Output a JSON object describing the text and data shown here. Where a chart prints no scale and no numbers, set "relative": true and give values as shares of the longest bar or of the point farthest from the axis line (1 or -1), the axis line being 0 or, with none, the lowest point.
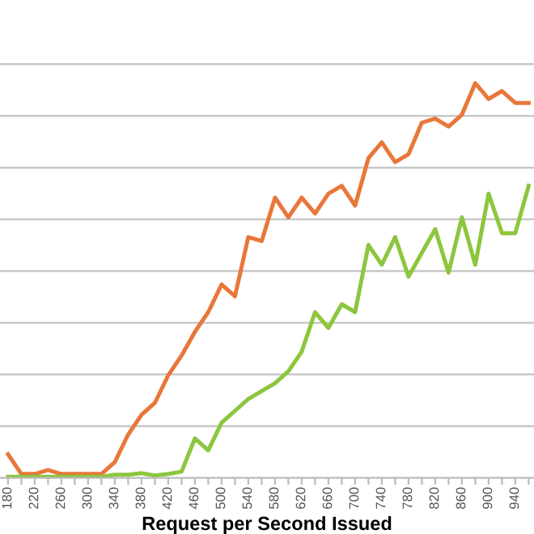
{
  "chart_data": {
    "type": "line",
    "relative": true,
    "xlabel": "Request per Second Issued",
    "categories": [
      "180",
      null,
      "220",
      null,
      "260",
      null,
      "300",
      null,
      "340",
      null,
      "380",
      null,
      "420",
      null,
      "460",
      null,
      "500",
      null,
      "540",
      null,
      "580",
      null,
      "620",
      null,
      "660",
      null,
      "700",
      null,
      "740",
      null,
      "780",
      null,
      "820",
      null,
      "860",
      null,
      "900",
      null,
      "940",
      null
    ],
    "series": [
      {
        "color": "#e8773a",
        "values": [
          0.06,
          0.01,
          0.01,
          0.02,
          0.01,
          0.01,
          0.01,
          0.01,
          0.04,
          0.11,
          0.16,
          0.19,
          0.26,
          0.31,
          0.37,
          0.42,
          0.49,
          0.46,
          0.61,
          0.6,
          0.71,
          0.66,
          0.71,
          0.67,
          0.72,
          0.74,
          0.69,
          0.81,
          0.85,
          0.8,
          0.82,
          0.9,
          0.91,
          0.89,
          0.92,
          1,
          0.96,
          0.98,
          0.95,
          0.95
        ]
      },
      {
        "color": "#8cc63e",
        "values": [
          0.003,
          0.003,
          0.003,
          0.003,
          0.003,
          0.003,
          0.003,
          0.003,
          0.008,
          0.008,
          0.012,
          0.006,
          0.01,
          0.016,
          0.1,
          0.07,
          0.14,
          0.17,
          0.2,
          0.22,
          0.24,
          0.27,
          0.32,
          0.42,
          0.38,
          0.44,
          0.42,
          0.59,
          0.54,
          0.61,
          0.51,
          0.57,
          0.63,
          0.52,
          0.66,
          0.54,
          0.72,
          0.62,
          0.62,
          0.74
        ]
      }
    ],
    "grid": "y",
    "legend": false,
    "marker": "none",
    "line_style": "solid"
  }
}
